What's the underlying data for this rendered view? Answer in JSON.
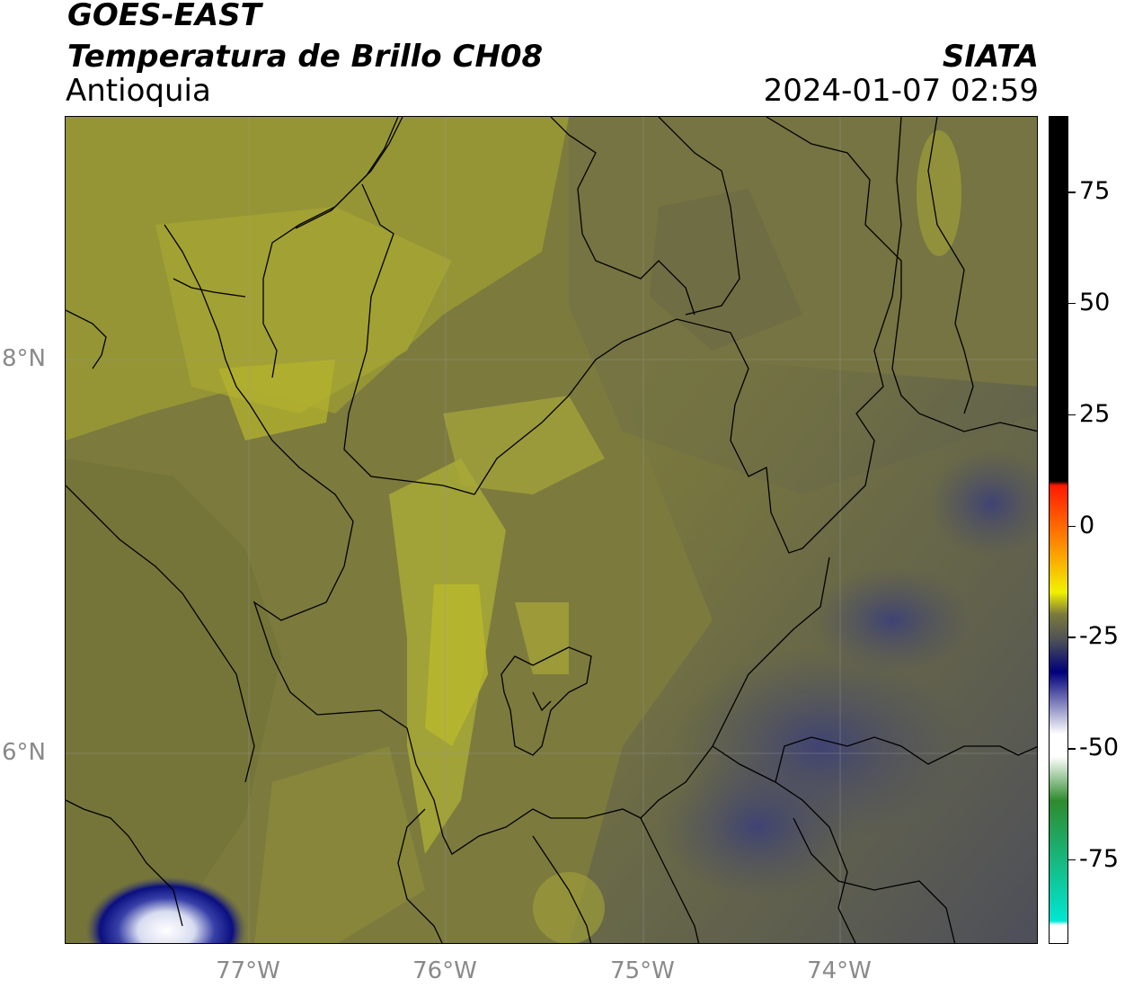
{
  "header": {
    "satellite": "GOES-EAST",
    "product": "Temperatura de Brillo CH08",
    "region": "Antioquia",
    "agency": "SIATA",
    "timestamp": "2024-01-07 02:59"
  },
  "map": {
    "latitude_labels": [
      "8°N",
      "6°N"
    ],
    "longitude_labels": [
      "77°W",
      "76°W",
      "75°W",
      "74°W"
    ]
  },
  "colorbar": {
    "tick_labels": [
      "75",
      "50",
      "25",
      "0",
      "-25",
      "-50",
      "-75"
    ],
    "tick_values": [
      75,
      50,
      25,
      0,
      -25,
      -50,
      -75
    ],
    "range": [
      -94,
      92
    ],
    "palette": {
      "dark_gray": "#4b4e58",
      "olive": "#7b7a3c",
      "yellow": "#f1f100",
      "orange": "#ff8a00",
      "red": "#ff1a00",
      "black": "#000000",
      "navy": "#00007a",
      "white": "#ffffff",
      "green": "#2e8b2e",
      "cyan": "#00e6d2"
    }
  }
}
